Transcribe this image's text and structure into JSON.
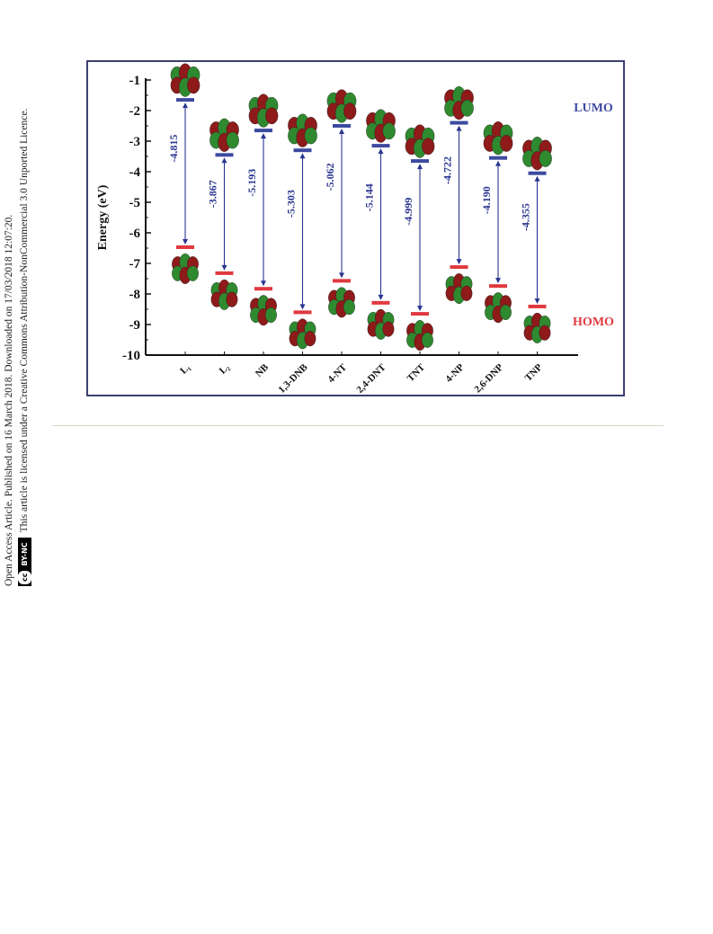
{
  "side_note": {
    "line1": "Open Access Article. Published on 16 March 2018. Downloaded on 17/03/2018 12:07:20.",
    "line2": "This article is licensed under a Creative Commons Attribution-NonCommercial 3.0 Unported Licence.",
    "badge_cc": "cc",
    "badge_text": "BY-NC"
  },
  "chart_data": {
    "type": "energy-level diagram",
    "ylabel": "Energy (eV)",
    "ylim": [
      -10,
      -1
    ],
    "yticks": [
      "-1",
      "-2",
      "-3",
      "-4",
      "-5",
      "-6",
      "-7",
      "-8",
      "-9",
      "-10"
    ],
    "categories": [
      "L₁",
      "L₂",
      "NB",
      "1,3-DNB",
      "4-NT",
      "2,4-DNT",
      "TNT",
      "4-NP",
      "2,6-DNP",
      "TNP"
    ],
    "lumo": [
      -1.65,
      -3.45,
      -2.65,
      -3.3,
      -2.5,
      -3.15,
      -3.65,
      -2.4,
      -3.55,
      -4.05
    ],
    "homo": [
      -6.47,
      -7.32,
      -7.83,
      -8.6,
      -7.57,
      -8.29,
      -8.65,
      -7.12,
      -7.74,
      -8.41
    ],
    "gap_labels": [
      "-4.815",
      "-3.867",
      "-5.193",
      "-5.303",
      "-5.062",
      "-5.144",
      "-4.999",
      "-4.722",
      "-4.190",
      "-4.355"
    ],
    "series": [
      {
        "name": "LUMO",
        "color": "#3d4aa0"
      },
      {
        "name": "HOMO",
        "color": "#e0393f"
      }
    ],
    "arrow_color": "#2a3590",
    "orbital_colors": {
      "positive": "#2f8a2f",
      "negative": "#8e1a1a"
    }
  }
}
